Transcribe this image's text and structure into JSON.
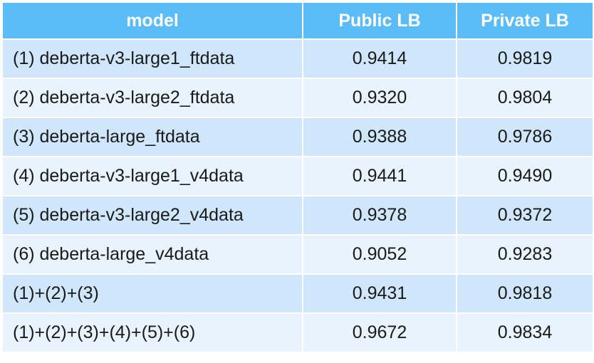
{
  "table": {
    "headers": [
      "model",
      "Public LB",
      "Private LB"
    ],
    "rows": [
      {
        "model": "(1) deberta-v3-large1_ftdata",
        "public": "0.9414",
        "private": "0.9819"
      },
      {
        "model": "(2) deberta-v3-large2_ftdata",
        "public": "0.9320",
        "private": "0.9804"
      },
      {
        "model": "(3) deberta-large_ftdata",
        "public": "0.9388",
        "private": "0.9786"
      },
      {
        "model": "(4) deberta-v3-large1_v4data",
        "public": "0.9441",
        "private": "0.9490"
      },
      {
        "model": "(5) deberta-v3-large2_v4data",
        "public": "0.9378",
        "private": "0.9372"
      },
      {
        "model": "(6) deberta-large_v4data",
        "public": "0.9052",
        "private": "0.9283"
      },
      {
        "model": "(1)+(2)+(3)",
        "public": "0.9431",
        "private": "0.9818"
      },
      {
        "model": "(1)+(2)+(3)+(4)+(5)+(6)",
        "public": "0.9672",
        "private": "0.9834"
      }
    ]
  },
  "colors": {
    "header_bg": "#5bbcf8",
    "row_odd": "#cfe6fb",
    "row_even": "#e8f3fd"
  }
}
